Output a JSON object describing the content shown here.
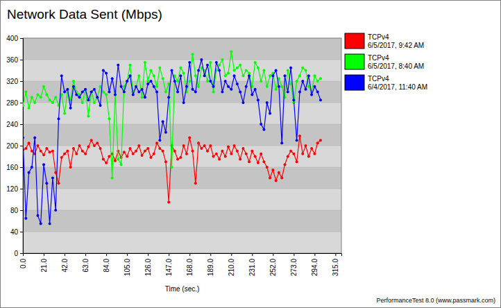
{
  "chart_data": {
    "type": "line",
    "title": "Network Data Sent (Mbps)",
    "x_label": "Time (sec.)",
    "source": "PerformanceTest 8.0 (www.passmark.com)",
    "marker": "circle",
    "grid": true,
    "legend": "right",
    "xlim": [
      0,
      321
    ],
    "xticks": [
      {
        "value": 0,
        "label": "0.0"
      },
      {
        "value": 21,
        "label": "21.0"
      },
      {
        "value": 42,
        "label": "42.0"
      },
      {
        "value": 63,
        "label": "63.0"
      },
      {
        "value": 84,
        "label": "84.0"
      },
      {
        "value": 105,
        "label": "105.0"
      },
      {
        "value": 126,
        "label": "126.0"
      },
      {
        "value": 147,
        "label": "147.0"
      },
      {
        "value": 168,
        "label": "168.0"
      },
      {
        "value": 189,
        "label": "189.0"
      },
      {
        "value": 210,
        "label": "210.0"
      },
      {
        "value": 231,
        "label": "231.0"
      },
      {
        "value": 252,
        "label": "252.0"
      },
      {
        "value": 273,
        "label": "273.0"
      },
      {
        "value": 294,
        "label": "294.0"
      },
      {
        "value": 315,
        "label": "315.0"
      }
    ],
    "ylim": [
      0,
      400
    ],
    "yticks": [
      0,
      40,
      80,
      120,
      160,
      200,
      240,
      280,
      320,
      360,
      400
    ],
    "x": [
      0,
      3,
      6,
      9,
      12,
      15,
      18,
      21,
      24,
      27,
      30,
      33,
      36,
      39,
      42,
      45,
      48,
      51,
      54,
      57,
      60,
      63,
      66,
      69,
      72,
      75,
      78,
      81,
      84,
      87,
      90,
      93,
      96,
      99,
      102,
      105,
      108,
      111,
      114,
      117,
      120,
      123,
      126,
      129,
      132,
      135,
      138,
      141,
      144,
      147,
      150,
      153,
      156,
      159,
      162,
      165,
      168,
      171,
      174,
      177,
      180,
      183,
      186,
      189,
      192,
      195,
      198,
      201,
      204,
      207,
      210,
      213,
      216,
      219,
      222,
      225,
      228,
      231,
      234,
      237,
      240,
      243,
      246,
      249,
      252,
      255,
      258,
      261,
      264,
      267,
      270,
      273,
      276,
      279,
      282,
      285,
      288,
      291,
      294,
      297,
      300
    ],
    "series": [
      {
        "name": "TCPv4",
        "timestamp": "6/5/2017, 9:42 AM",
        "color": "#ff0000",
        "values": [
          192,
          195,
          205,
          190,
          185,
          200,
          190,
          183,
          195,
          188,
          190,
          150,
          130,
          178,
          185,
          190,
          160,
          195,
          185,
          200,
          190,
          185,
          198,
          210,
          200,
          205,
          195,
          175,
          168,
          180,
          185,
          172,
          190,
          178,
          188,
          180,
          195,
          185,
          190,
          200,
          182,
          190,
          195,
          178,
          185,
          205,
          195,
          190,
          170,
          95,
          200,
          190,
          175,
          178,
          200,
          185,
          215,
          190,
          130,
          205,
          195,
          200,
          190,
          200,
          180,
          185,
          175,
          190,
          180,
          198,
          185,
          200,
          190,
          175,
          195,
          185,
          170,
          190,
          180,
          168,
          185,
          170,
          160,
          140,
          155,
          135,
          150,
          140,
          165,
          180,
          190,
          185,
          170,
          218,
          185,
          200,
          180,
          195,
          185,
          205,
          210
        ]
      },
      {
        "name": "TCPv4",
        "timestamp": "6/5/2017, 8:40 AM",
        "color": "#00ff00",
        "values": [
          275,
          300,
          270,
          290,
          280,
          295,
          290,
          310,
          295,
          285,
          280,
          290,
          275,
          295,
          260,
          300,
          285,
          320,
          300,
          295,
          280,
          305,
          255,
          300,
          280,
          290,
          310,
          300,
          295,
          250,
          140,
          300,
          175,
          165,
          310,
          320,
          350,
          300,
          310,
          330,
          290,
          355,
          320,
          340,
          330,
          310,
          345,
          325,
          300,
          315,
          160,
          330,
          320,
          345,
          335,
          300,
          320,
          370,
          330,
          310,
          345,
          340,
          320,
          355,
          300,
          340,
          350,
          360,
          330,
          335,
          375,
          340,
          345,
          350,
          330,
          340,
          335,
          310,
          355,
          345,
          320,
          340,
          310,
          330,
          335,
          305,
          325,
          310,
          290,
          340,
          315,
          280,
          320,
          330,
          345,
          340,
          310,
          300,
          330,
          320,
          325
        ]
      },
      {
        "name": "TCPv4",
        "timestamp": "6/4/2017, 11:40 AM",
        "color": "#0000ff",
        "values": [
          215,
          65,
          150,
          160,
          215,
          70,
          55,
          165,
          130,
          55,
          140,
          80,
          250,
          330,
          300,
          305,
          270,
          310,
          295,
          290,
          300,
          305,
          285,
          300,
          305,
          290,
          275,
          340,
          335,
          300,
          325,
          295,
          350,
          310,
          300,
          320,
          330,
          295,
          310,
          300,
          305,
          290,
          315,
          320,
          310,
          300,
          210,
          245,
          225,
          290,
          340,
          320,
          300,
          330,
          280,
          310,
          355,
          305,
          300,
          340,
          360,
          330,
          350,
          320,
          310,
          355,
          340,
          300,
          320,
          310,
          305,
          330,
          315,
          300,
          280,
          310,
          330,
          295,
          305,
          285,
          240,
          230,
          280,
          260,
          330,
          340,
          310,
          205,
          330,
          300,
          345,
          285,
          210,
          300,
          320,
          305,
          330,
          295,
          310,
          300,
          285
        ]
      }
    ]
  }
}
